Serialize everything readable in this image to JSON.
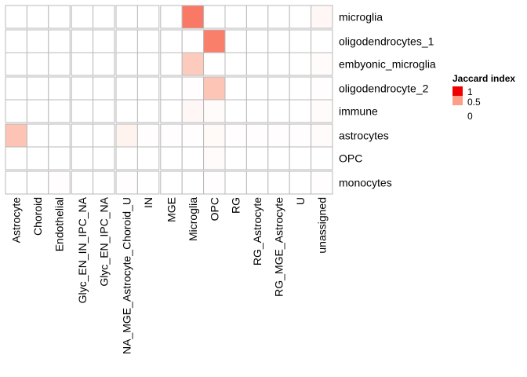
{
  "chart_data": {
    "type": "heatmap",
    "rows": [
      "microglia",
      "oligodendrocytes_1",
      "embyonic_microglia",
      "oligodendrocyte_2",
      "immune",
      "astrocytes",
      "OPC",
      "monocytes"
    ],
    "columns": [
      "Astrocyte",
      "Choroid",
      "Endothelial",
      "Glyc_EN_IN_IPC_NA",
      "Glyc_EN_IPC_NA",
      "NA_MGE_Astrocyte_Choroid_U",
      "IN",
      "MGE",
      "Microglia",
      "OPC",
      "RG",
      "RG_Astrocyte",
      "RG_MGE_Astrocyte",
      "U",
      "unassigned"
    ],
    "values": [
      [
        0,
        0,
        0,
        0,
        0,
        0,
        0,
        0,
        0.62,
        0,
        0,
        0,
        0,
        0,
        0.04
      ],
      [
        0,
        0,
        0,
        0,
        0,
        0,
        0,
        0,
        0,
        0.6,
        0,
        0,
        0,
        0,
        0
      ],
      [
        0,
        0,
        0,
        0,
        0,
        0,
        0,
        0,
        0.27,
        0,
        0,
        0,
        0,
        0,
        0.02
      ],
      [
        0,
        0,
        0,
        0,
        0,
        0,
        0,
        0,
        0.01,
        0.3,
        0,
        0,
        0,
        0,
        0.01
      ],
      [
        0,
        0,
        0,
        0,
        0,
        0,
        0,
        0,
        0.04,
        0.02,
        0,
        0,
        0,
        0,
        0.02
      ],
      [
        0.31,
        0,
        0,
        0,
        0,
        0.06,
        0.01,
        0.01,
        0.01,
        0.03,
        0.01,
        0.01,
        0.01,
        0.01,
        0.02
      ],
      [
        0,
        0,
        0,
        0,
        0,
        0,
        0,
        0,
        0,
        0.02,
        0,
        0,
        0,
        0,
        0
      ],
      [
        0,
        0,
        0.01,
        0,
        0,
        0.01,
        0,
        0,
        0,
        0.01,
        0,
        0,
        0,
        0,
        0.01
      ]
    ],
    "row_gaps_after": [
      0,
      2,
      4,
      6
    ],
    "col_gaps_after": [
      2,
      4,
      6
    ],
    "color_scale": {
      "min": 0,
      "mid": 0.5,
      "max": 1,
      "low_color": "#ffffff",
      "mid_color": "#fc9f86",
      "high_color": "#ee0000"
    },
    "legend": {
      "title": "Jaccard index",
      "ticks": [
        "1",
        "0.5",
        "0"
      ],
      "placement": "right"
    }
  },
  "colors": {
    "grid_line": "#b8b8b8",
    "gap_line": "#a8a8a8"
  }
}
